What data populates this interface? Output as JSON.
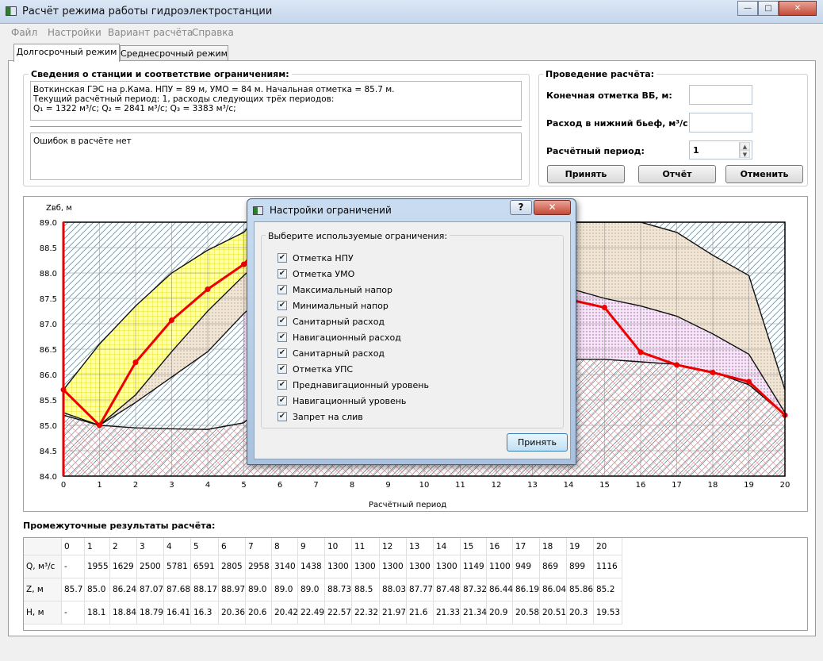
{
  "window": {
    "title": "Расчёт режима работы гидроэлектростанции",
    "minimize": "—",
    "maximize": "□",
    "close": "✕"
  },
  "menu": [
    "Файл",
    "Настройки",
    "Вариант расчёта",
    "Справка"
  ],
  "tabs": [
    "Долгосрочный режим",
    "Среднесрочный режим"
  ],
  "info": {
    "title": "Сведения о станции и соответствие ограничениям:",
    "line1": "Воткинская ГЭС на р.Кама. НПУ = 89 м, УМО = 84 м. Начальная отметка = 85.7 м.",
    "line2": "Текущий расчётный период: 1, расходы следующих трёх периодов:",
    "line3": "Q₁ = 1322 м³/с; Q₂ = 2841 м³/с; Q₃ = 3383 м³/с;",
    "errors": "Ошибок в расчёте нет"
  },
  "calc": {
    "title": "Проведение расчёта:",
    "end_level_label": "Конечная отметка ВБ, м:",
    "discharge_label": "Расход в нижний бьеф, м³/с :",
    "period_label": "Расчётный период:",
    "period_value": "1",
    "accept": "Принять",
    "report": "Отчёт",
    "cancel": "Отменить"
  },
  "chart_data": {
    "type": "line",
    "ylabel": "Zвб, м",
    "xlabel": "Расчётный период",
    "xlim": [
      0,
      20
    ],
    "ylim": [
      84.0,
      89.0
    ],
    "x_ticks": [
      "0",
      "1",
      "2",
      "3",
      "4",
      "5",
      "6",
      "7",
      "8",
      "9",
      "10",
      "11",
      "12",
      "13",
      "14",
      "15",
      "16",
      "17",
      "18",
      "19",
      "20"
    ],
    "y_ticks": [
      "84.0",
      "84.5",
      "85.0",
      "85.5",
      "86.0",
      "86.5",
      "87.0",
      "87.5",
      "88.0",
      "88.5",
      "89.0"
    ],
    "regime_line": {
      "x": [
        0,
        1,
        2,
        3,
        4,
        5,
        6,
        7,
        8,
        9,
        10,
        11,
        12,
        13,
        14,
        15,
        16,
        17,
        18,
        19,
        20
      ],
      "y": [
        85.7,
        85.0,
        86.24,
        87.07,
        87.68,
        88.17,
        88.97,
        89.0,
        89.0,
        89.0,
        88.73,
        88.5,
        88.03,
        87.77,
        87.48,
        87.32,
        86.44,
        86.19,
        86.04,
        85.86,
        85.2
      ]
    },
    "boundary_lines": [
      {
        "name": "max",
        "points": [
          [
            0,
            85.7
          ],
          [
            1,
            86.6
          ],
          [
            2,
            87.35
          ],
          [
            3,
            88.0
          ],
          [
            4,
            88.45
          ],
          [
            5,
            88.8
          ],
          [
            5.25,
            89.0
          ],
          [
            14,
            89.0
          ],
          [
            15,
            89.0
          ],
          [
            16,
            89.0
          ],
          [
            17,
            88.8
          ],
          [
            18,
            88.35
          ],
          [
            19,
            87.95
          ],
          [
            20,
            85.7
          ]
        ]
      },
      {
        "name": "upper-mid",
        "points": [
          [
            0,
            85.25
          ],
          [
            1,
            85.0
          ],
          [
            2,
            85.45
          ],
          [
            3,
            85.95
          ],
          [
            4,
            86.45
          ],
          [
            5,
            87.2
          ],
          [
            6,
            87.85
          ],
          [
            14,
            87.7
          ],
          [
            15,
            87.5
          ],
          [
            16,
            87.35
          ],
          [
            17,
            87.15
          ],
          [
            18,
            86.8
          ],
          [
            19,
            86.4
          ],
          [
            20,
            85.25
          ]
        ]
      },
      {
        "name": "lower",
        "points": [
          [
            0,
            85.2
          ],
          [
            1,
            85.0
          ],
          [
            2,
            84.95
          ],
          [
            3,
            84.93
          ],
          [
            4,
            84.92
          ],
          [
            5,
            85.05
          ],
          [
            6,
            85.7
          ],
          [
            14,
            86.3
          ],
          [
            15,
            86.3
          ],
          [
            16,
            86.25
          ],
          [
            17,
            86.2
          ],
          [
            18,
            86.05
          ],
          [
            19,
            85.8
          ],
          [
            20,
            85.2
          ]
        ]
      },
      {
        "name": "tan-edge",
        "points": [
          [
            1,
            85.0
          ],
          [
            2,
            85.6
          ],
          [
            3,
            86.45
          ],
          [
            4,
            87.25
          ],
          [
            5,
            87.95
          ],
          [
            6,
            88.6
          ],
          [
            7,
            89.0
          ]
        ]
      }
    ]
  },
  "dialog": {
    "title": "Настройки ограничений",
    "help": "?",
    "close": "✕",
    "group_title": "Выберите используемые ограничения:",
    "check_mark": "✔",
    "options": [
      "Отметка НПУ",
      "Отметка УМО",
      "Максимальный напор",
      "Минимальный напор",
      "Санитарный расход",
      "Навигационный расход",
      "Санитарный расход",
      "Отметка УПС",
      "Преднавигационный уровень",
      "Навигационный уровень",
      "Запрет на слив"
    ],
    "ok": "Принять"
  },
  "results": {
    "title": "Промежуточные результаты расчёта:",
    "columns": [
      "0",
      "1",
      "2",
      "3",
      "4",
      "5",
      "6",
      "7",
      "8",
      "9",
      "10",
      "11",
      "12",
      "13",
      "14",
      "15",
      "16",
      "17",
      "18",
      "19",
      "20"
    ],
    "rows": [
      {
        "label": "Q, м³/с",
        "values": [
          "-",
          "1955",
          "1629",
          "2500",
          "5781",
          "6591",
          "2805",
          "2958",
          "3140",
          "1438",
          "1300",
          "1300",
          "1300",
          "1300",
          "1300",
          "1149",
          "1100",
          "949",
          "869",
          "899",
          "1116"
        ]
      },
      {
        "label": "Z, м",
        "values": [
          "85.7",
          "85.0",
          "86.24",
          "87.07",
          "87.68",
          "88.17",
          "88.97",
          "89.0",
          "89.0",
          "89.0",
          "88.73",
          "88.5",
          "88.03",
          "87.77",
          "87.48",
          "87.32",
          "86.44",
          "86.19",
          "86.04",
          "85.86",
          "85.2"
        ]
      },
      {
        "label": "H, м",
        "values": [
          "-",
          "18.1",
          "18.84",
          "18.79",
          "16.41",
          "16.3",
          "20.36",
          "20.6",
          "20.42",
          "22.49",
          "22.57",
          "22.32",
          "21.97",
          "21.6",
          "21.33",
          "21.34",
          "20.9",
          "20.58",
          "20.51",
          "20.3",
          "19.53"
        ]
      }
    ]
  }
}
